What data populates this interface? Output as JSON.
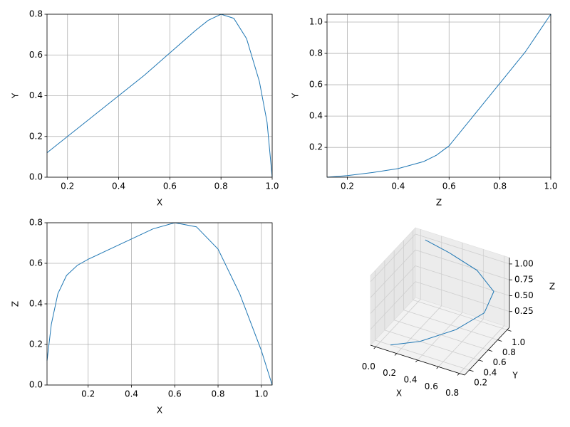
{
  "chart_data": [
    {
      "type": "line",
      "xlabel": "X",
      "ylabel": "Y",
      "color": "#1f77b4",
      "grid": true,
      "x": [
        0.12,
        0.2,
        0.3,
        0.4,
        0.5,
        0.6,
        0.7,
        0.75,
        0.8,
        0.85,
        0.9,
        0.95,
        0.98,
        1.0
      ],
      "values": [
        0.12,
        0.2,
        0.3,
        0.4,
        0.5,
        0.61,
        0.72,
        0.77,
        0.8,
        0.78,
        0.68,
        0.47,
        0.27,
        0.0
      ],
      "xlim": [
        0.12,
        1.0
      ],
      "ylim": [
        0,
        0.8
      ],
      "xticks": [
        0.2,
        0.4,
        0.6,
        0.8,
        {
          "value": 1.0,
          "label": "1.0"
        }
      ],
      "yticks": [
        {
          "value": 0,
          "label": "0.0"
        },
        0.2,
        0.4,
        0.6,
        0.8
      ]
    },
    {
      "type": "line",
      "xlabel": "Z",
      "ylabel": "Y",
      "color": "#1f77b4",
      "grid": true,
      "x": [
        0.12,
        0.2,
        0.3,
        0.4,
        0.5,
        0.55,
        0.6,
        0.7,
        0.8,
        0.9,
        1.0
      ],
      "values": [
        0.01,
        0.02,
        0.04,
        0.065,
        0.11,
        0.15,
        0.21,
        0.41,
        0.61,
        0.81,
        1.05
      ],
      "xlim": [
        0.12,
        1.0
      ],
      "ylim": [
        0.01,
        1.05
      ],
      "xticks": [
        0.2,
        0.4,
        0.6,
        0.8,
        {
          "value": 1.0,
          "label": "1.0"
        }
      ],
      "yticks": [
        0.2,
        0.4,
        0.6,
        0.8,
        {
          "value": 1.0,
          "label": "1.0"
        }
      ]
    },
    {
      "type": "line",
      "xlabel": "X",
      "ylabel": "Z",
      "color": "#1f77b4",
      "grid": true,
      "x": [
        0.01,
        0.03,
        0.06,
        0.1,
        0.15,
        0.2,
        0.3,
        0.4,
        0.5,
        0.6,
        0.7,
        0.8,
        0.9,
        1.0,
        1.05
      ],
      "values": [
        0.12,
        0.3,
        0.45,
        0.54,
        0.59,
        0.62,
        0.67,
        0.72,
        0.77,
        0.8,
        0.78,
        0.67,
        0.45,
        0.17,
        0.0
      ],
      "xlim": [
        0.01,
        1.05
      ],
      "ylim": [
        0,
        0.8
      ],
      "xticks": [
        0.2,
        0.4,
        0.6,
        0.8,
        {
          "value": 1.0,
          "label": "1.0"
        }
      ],
      "yticks": [
        {
          "value": 0,
          "label": "0.0"
        },
        0.2,
        0.4,
        0.6,
        0.8
      ]
    },
    {
      "type": "line3d",
      "xlabel": "X",
      "ylabel": "Y",
      "zlabel": "Z",
      "color": "#1f77b4",
      "grid": true,
      "x": [
        0.1,
        0.31,
        0.56,
        0.74,
        0.75,
        0.59,
        0.3,
        0.085
      ],
      "y": [
        0.19,
        0.35,
        0.56,
        0.76,
        0.94,
        0.94,
        0.98,
        0.96
      ],
      "z": [
        0.01,
        0.05,
        0.2,
        0.4,
        0.6,
        0.85,
        0.95,
        1.05
      ],
      "xlim": [
        -0.05,
        0.85
      ],
      "ylim": [
        0.1,
        1.05
      ],
      "zlim": [
        0,
        1.1
      ],
      "xticks": [
        {
          "value": 0,
          "label": "0.0"
        },
        0.2,
        0.4,
        0.6,
        0.8
      ],
      "yticks": [
        0.2,
        0.4,
        0.6,
        0.8,
        {
          "value": 1.0,
          "label": "1.0"
        }
      ],
      "zticks": [
        0.25,
        {
          "value": 0.5,
          "label": "0.50"
        },
        0.75,
        {
          "value": 1.0,
          "label": "1.00"
        }
      ]
    }
  ]
}
